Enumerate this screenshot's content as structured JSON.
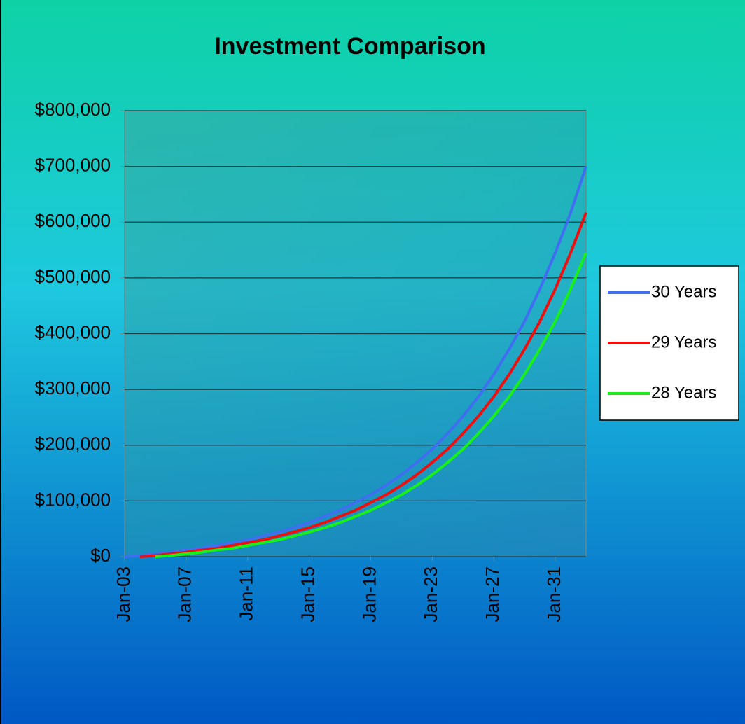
{
  "chart_data": {
    "type": "line",
    "title": "Investment Comparison",
    "categories": [
      "Jan-03",
      null,
      null,
      null,
      "Jan-07",
      null,
      null,
      null,
      "Jan-11",
      null,
      null,
      null,
      "Jan-15",
      null,
      null,
      null,
      "Jan-19",
      null,
      null,
      null,
      "Jan-23",
      null,
      null,
      null,
      "Jan-27",
      null,
      null,
      null,
      "Jan-31",
      null,
      null
    ],
    "series": [
      {
        "name": "30 Years",
        "color": "#3f6ff0",
        "values": [
          0,
          2000,
          5000,
          8000,
          12000,
          15000,
          20000,
          25000,
          30000,
          37000,
          44000,
          52000,
          61000,
          72000,
          83000,
          97000,
          111000,
          128000,
          147000,
          169000,
          193000,
          221000,
          252000,
          287000,
          327000,
          372000,
          422000,
          480000,
          545000,
          617000,
          700000
        ]
      },
      {
        "name": "29 Years",
        "color": "#ee0f0f",
        "values": [
          null,
          0,
          2000,
          5000,
          8000,
          12000,
          15000,
          20000,
          25000,
          30000,
          37000,
          44000,
          52000,
          61000,
          72000,
          83000,
          97000,
          111000,
          128000,
          147000,
          169000,
          193000,
          221000,
          252000,
          287000,
          327000,
          372000,
          422000,
          480000,
          545000,
          617000
        ]
      },
      {
        "name": "28 Years",
        "color": "#19f019",
        "values": [
          null,
          null,
          0,
          2000,
          5000,
          8000,
          12000,
          15000,
          20000,
          25000,
          30000,
          37000,
          44000,
          52000,
          61000,
          72000,
          83000,
          97000,
          111000,
          128000,
          147000,
          169000,
          193000,
          221000,
          252000,
          287000,
          327000,
          372000,
          422000,
          480000,
          545000
        ]
      }
    ],
    "ylim": [
      0,
      800000
    ],
    "yticks": [
      {
        "value": 0,
        "label": "$0"
      },
      {
        "value": 100000,
        "label": "$100,000"
      },
      {
        "value": 200000,
        "label": "$200,000"
      },
      {
        "value": 300000,
        "label": "$300,000"
      },
      {
        "value": 400000,
        "label": "$400,000"
      },
      {
        "value": 500000,
        "label": "$500,000"
      },
      {
        "value": 600000,
        "label": "$600,000"
      },
      {
        "value": 700000,
        "label": "$700,000"
      },
      {
        "value": 800000,
        "label": "$800,000"
      }
    ],
    "grid": true,
    "legend": "right"
  }
}
